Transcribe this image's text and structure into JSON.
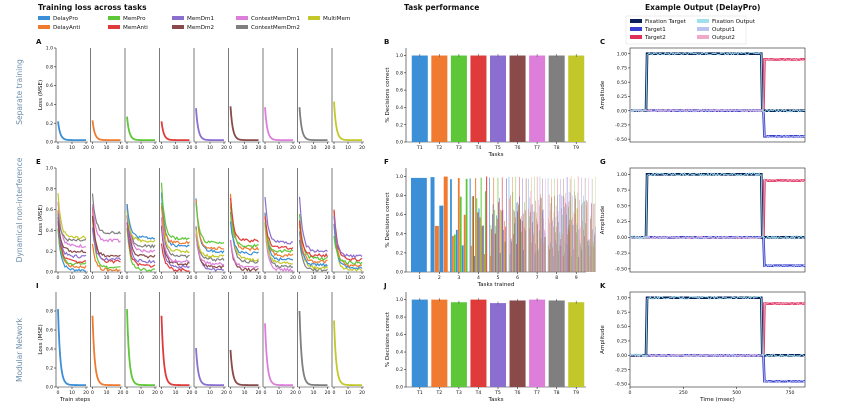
{
  "header": {
    "loss_title": "Training loss across tasks",
    "perf_title": "Task performance",
    "output_title": "Example Output (DelayPro)"
  },
  "legend_tasks": [
    {
      "name": "DelayPro",
      "color": "#3a8fd6"
    },
    {
      "name": "DelayAnti",
      "color": "#f07a2f"
    },
    {
      "name": "MemPro",
      "color": "#5dc738"
    },
    {
      "name": "MemAnti",
      "color": "#e03b3b"
    },
    {
      "name": "MemDm1",
      "color": "#8b6fd0"
    },
    {
      "name": "MemDm2",
      "color": "#8a4a4a"
    },
    {
      "name": "ContextMemDm1",
      "color": "#dd7edb"
    },
    {
      "name": "ContextMemDm2",
      "color": "#7f7f7f"
    },
    {
      "name": "MultiMem",
      "color": "#c3c82a"
    }
  ],
  "legend_outputs": [
    {
      "name": "Fixation Target",
      "color": "#0b1f5a"
    },
    {
      "name": "Target1",
      "color": "#3a3fd0"
    },
    {
      "name": "Target2",
      "color": "#e03058"
    },
    {
      "name": "Fixation Output",
      "color": "#9fe0ea"
    },
    {
      "name": "Output1",
      "color": "#b9c4ee"
    },
    {
      "name": "Output2",
      "color": "#f0a8c8"
    }
  ],
  "rows": [
    {
      "label": "Separate training"
    },
    {
      "label": "Dynamical non-interference"
    },
    {
      "label": "Modular Network"
    }
  ],
  "panel_letters": [
    "A",
    "B",
    "C",
    "E",
    "F",
    "G",
    "I",
    "J",
    "K"
  ],
  "chart_data": [
    {
      "type": "line",
      "panel": "A",
      "ylabel": "Loss (MSE)",
      "ylim": [
        0,
        1.0
      ],
      "yticks": [
        "0.0",
        "0.2",
        "0.4",
        "0.6",
        "0.8",
        "1.0"
      ],
      "xticks": [
        "0",
        "10",
        "20"
      ],
      "series": [
        {
          "name": "DelayPro",
          "peak": 0.22
        },
        {
          "name": "DelayAnti",
          "peak": 0.23
        },
        {
          "name": "MemPro",
          "peak": 0.27
        },
        {
          "name": "MemAnti",
          "peak": 0.22
        },
        {
          "name": "MemDm1",
          "peak": 0.36
        },
        {
          "name": "MemDm2",
          "peak": 0.38
        },
        {
          "name": "ContextMemDm1",
          "peak": 0.37
        },
        {
          "name": "ContextMemDm2",
          "peak": 0.37
        },
        {
          "name": "MultiMem",
          "peak": 0.43
        }
      ]
    },
    {
      "type": "bar",
      "panel": "B",
      "ylabel": "% Decisions correct",
      "xlabel": "Tasks",
      "ylim": [
        0,
        1.0
      ],
      "yticks": [
        "0.0",
        "0.2",
        "0.4",
        "0.6",
        "0.8",
        "1.0"
      ],
      "categories": [
        "T1",
        "T2",
        "T3",
        "T4",
        "T5",
        "T6",
        "T7",
        "T8",
        "T9"
      ],
      "values": [
        1.0,
        1.0,
        1.0,
        1.0,
        1.0,
        1.0,
        1.0,
        1.0,
        1.0
      ]
    },
    {
      "type": "line",
      "panel": "C",
      "ylabel": "Amplitude",
      "ylim": [
        -0.55,
        1.1
      ],
      "yticks": [
        "-0.50",
        "-0.25",
        "0.00",
        "0.25",
        "0.50",
        "0.75",
        "1.00"
      ]
    },
    {
      "type": "line",
      "panel": "E",
      "ylabel": "Loss (MSE)",
      "ylim": [
        0,
        1.0
      ],
      "yticks": [
        "0.0",
        "0.2",
        "0.4",
        "0.6",
        "0.8",
        "1.0"
      ],
      "xticks": [
        "0",
        "10",
        "20"
      ],
      "final_losses": [
        [
          0.02,
          0.05,
          0.08,
          0.1,
          0.15,
          0.2,
          0.25,
          0.3,
          0.33
        ],
        [
          0.02,
          0.04,
          0.1,
          0.12,
          0.15,
          0.3,
          0.38
        ],
        [
          0.02,
          0.06,
          0.1,
          0.15,
          0.2,
          0.25,
          0.3,
          0.33
        ],
        [
          0.02,
          0.05,
          0.08,
          0.1,
          0.15,
          0.2,
          0.25,
          0.28,
          0.32
        ],
        [
          0.02,
          0.05,
          0.08,
          0.12,
          0.15,
          0.2,
          0.23,
          0.28
        ],
        [
          0.02,
          0.05,
          0.1,
          0.12,
          0.18,
          0.22,
          0.25,
          0.3
        ],
        [
          0.02,
          0.05,
          0.08,
          0.12,
          0.16,
          0.2,
          0.23,
          0.28
        ],
        [
          0.02,
          0.04,
          0.07,
          0.1,
          0.13,
          0.16,
          0.2
        ],
        [
          0.02,
          0.04,
          0.06,
          0.09,
          0.12,
          0.15
        ]
      ]
    },
    {
      "type": "bar",
      "panel": "F",
      "ylabel": "% Decisions correct",
      "xlabel": "Tasks trained",
      "ylim": [
        0,
        1.0
      ],
      "yticks": [
        "0.0",
        "0.2",
        "0.4",
        "0.6",
        "0.8",
        "1.0"
      ],
      "categories": [
        "1",
        "2",
        "3",
        "4",
        "5",
        "6",
        "7",
        "8",
        "9"
      ]
    },
    {
      "type": "line",
      "panel": "G",
      "ylabel": "Amplitude",
      "ylim": [
        -0.55,
        1.1
      ],
      "yticks": [
        "-0.50",
        "-0.25",
        "0.00",
        "0.25",
        "0.50",
        "0.75",
        "1.00"
      ]
    },
    {
      "type": "line",
      "panel": "I",
      "ylabel": "Loss (MSE)",
      "xlabel": "Train steps",
      "ylim": [
        0,
        1.0
      ],
      "yticks": [
        "0.0",
        "0.2",
        "0.4",
        "0.6",
        "0.8"
      ],
      "xticks": [
        "0",
        "10",
        "20"
      ],
      "series": [
        {
          "name": "DelayPro",
          "peak": 0.82
        },
        {
          "name": "DelayAnti",
          "peak": 0.75
        },
        {
          "name": "MemPro",
          "peak": 0.82
        },
        {
          "name": "MemAnti",
          "peak": 0.75
        },
        {
          "name": "MemDm1",
          "peak": 0.41
        },
        {
          "name": "MemDm2",
          "peak": 0.39
        },
        {
          "name": "ContextMemDm1",
          "peak": 0.67
        },
        {
          "name": "ContextMemDm2",
          "peak": 0.8
        },
        {
          "name": "MultiMem",
          "peak": 0.7
        }
      ]
    },
    {
      "type": "bar",
      "panel": "J",
      "ylabel": "% Decisions correct",
      "xlabel": "Tasks",
      "ylim": [
        0,
        1.0
      ],
      "yticks": [
        "0.0",
        "0.2",
        "0.4",
        "0.6",
        "0.8",
        "1.0"
      ],
      "categories": [
        "T1",
        "T2",
        "T3",
        "T4",
        "T5",
        "T6",
        "T7",
        "T8",
        "T9"
      ],
      "values": [
        1.0,
        1.0,
        0.97,
        1.0,
        0.96,
        0.99,
        1.0,
        0.99,
        0.97
      ]
    },
    {
      "type": "line",
      "panel": "K",
      "ylabel": "Amplitude",
      "xlabel": "Time (msec)",
      "ylim": [
        -0.55,
        1.1
      ],
      "yticks": [
        "-0.50",
        "-0.25",
        "0.00",
        "0.25",
        "0.50",
        "0.75",
        "1.00"
      ],
      "xticks": [
        "0",
        "250",
        "500",
        "750"
      ],
      "xlim": [
        0,
        820
      ]
    }
  ]
}
